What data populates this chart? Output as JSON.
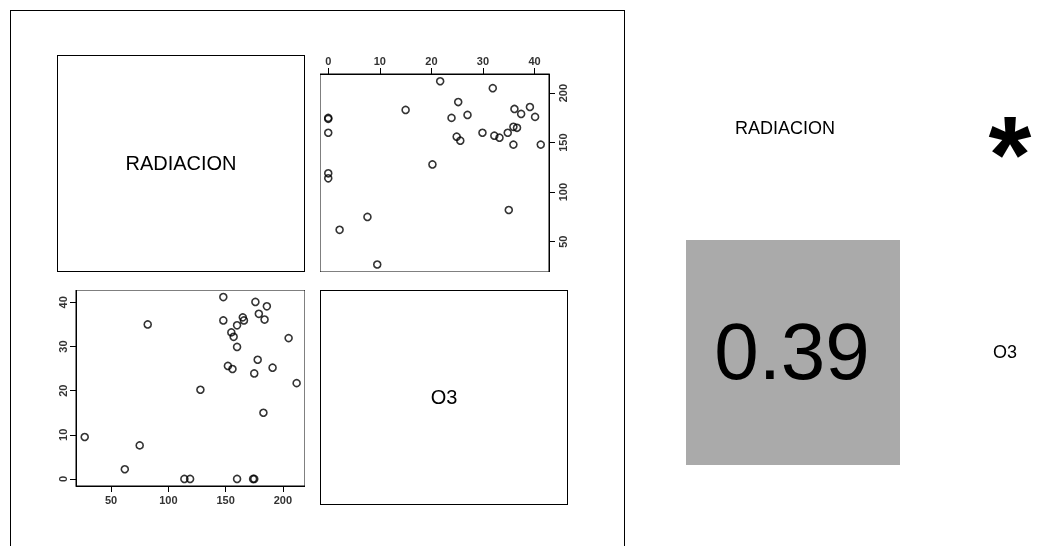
{
  "chart_data": [
    {
      "type": "other",
      "title": "RADIACION"
    },
    {
      "type": "scatter",
      "marker": "circle",
      "grid": false,
      "xlim": [
        -1.6,
        42.8
      ],
      "xticks": [
        0,
        10,
        20,
        30,
        40
      ],
      "ylim": [
        19.4,
        219.3
      ],
      "yticks": [
        50,
        100,
        150,
        200
      ],
      "series": [
        {
          "color": "#000000",
          "x": [
            9.5,
            2.2,
            7.6,
            35,
            0,
            0,
            20.2,
            41.2,
            35.9,
            25.6,
            33.2,
            24.9,
            32.2,
            34.8,
            29.9,
            0,
            36.6,
            35.9,
            23.9,
            0,
            0,
            40.1,
            27,
            37.4,
            15,
            36.1,
            39.1,
            25.2,
            31.9,
            21.7
          ],
          "values": [
            27,
            62,
            75,
            82,
            114,
            119,
            128,
            148,
            148,
            152,
            155,
            156,
            157,
            160,
            160,
            160,
            165,
            166,
            175,
            174,
            175,
            176,
            178,
            179,
            183,
            184,
            186,
            191,
            205,
            212
          ]
        }
      ]
    },
    {
      "type": "scatter",
      "marker": "circle",
      "grid": false,
      "xlim": [
        19.4,
        219.3
      ],
      "xticks": [
        50,
        100,
        150,
        200
      ],
      "ylim": [
        -1.6,
        42.8
      ],
      "yticks": [
        0,
        10,
        20,
        30,
        40
      ],
      "series": [
        {
          "color": "#000000",
          "x": [
            27,
            62,
            75,
            82,
            114,
            119,
            128,
            148,
            148,
            152,
            155,
            156,
            157,
            160,
            160,
            160,
            165,
            166,
            175,
            174,
            175,
            176,
            178,
            179,
            183,
            184,
            186,
            191,
            205,
            212
          ],
          "values": [
            9.5,
            2.2,
            7.6,
            35,
            0,
            0,
            20.2,
            41.2,
            35.9,
            25.6,
            33.2,
            24.9,
            32.2,
            34.8,
            29.9,
            0,
            36.6,
            35.9,
            23.9,
            0,
            0,
            40.1,
            27,
            37.4,
            15,
            36.1,
            39.1,
            25.2,
            31.9,
            21.7
          ]
        }
      ]
    },
    {
      "type": "other",
      "title": "O3"
    },
    {
      "type": "other",
      "annotations": [
        "RADIACION",
        "*",
        "0.39",
        "O3"
      ],
      "color": "#aaaaaa"
    }
  ]
}
